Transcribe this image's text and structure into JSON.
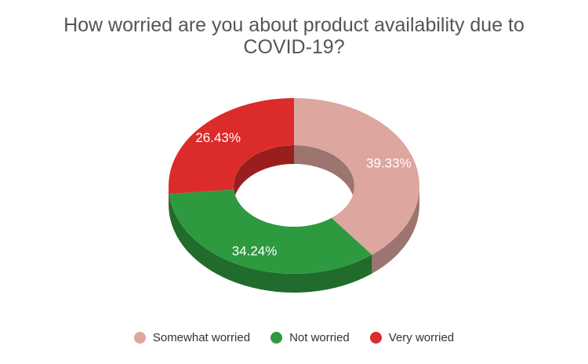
{
  "chart_data": {
    "type": "pie",
    "title": "How worried are you about product availability due to COVID-19?",
    "categories": [
      "Somewhat worried",
      "Not worried",
      "Very worried"
    ],
    "values": [
      39.33,
      34.24,
      26.43
    ],
    "data_labels": [
      "39.33%",
      "34.24%",
      "26.43%"
    ],
    "colors": [
      "#DDA69E",
      "#2E9A3F",
      "#DC2B2B"
    ],
    "side_colors": [
      "#9C7570",
      "#216B2C",
      "#9A1E1E"
    ],
    "style": "3d-donut",
    "legend_position": "bottom"
  }
}
